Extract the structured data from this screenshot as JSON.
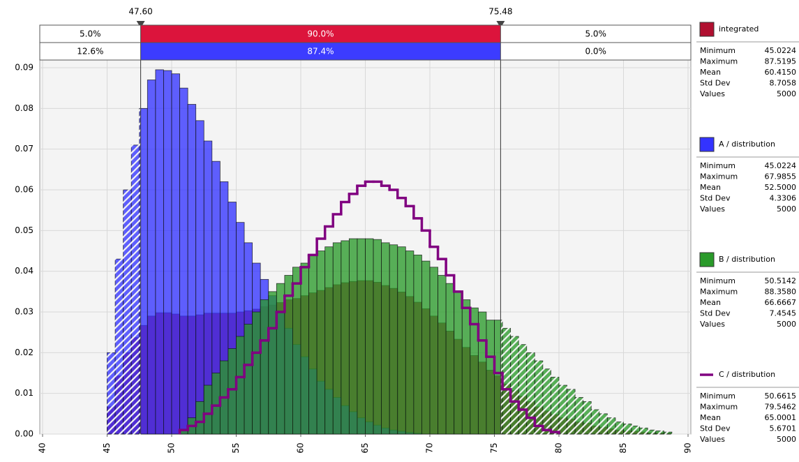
{
  "chart_data": {
    "type": "histogram",
    "bins": [
      45,
      45.625,
      46.25,
      46.875,
      47.5,
      48.125,
      48.75,
      49.375,
      50,
      50.625,
      51.25,
      51.875,
      52.5,
      53.125,
      53.75,
      54.375,
      55,
      55.625,
      56.25,
      56.875,
      57.5,
      58.125,
      58.75,
      59.375,
      60,
      60.625,
      61.25,
      61.875,
      62.5,
      63.125,
      63.75,
      64.375,
      65,
      65.625,
      66.25,
      66.875,
      67.5,
      68.125,
      68.75,
      69.375,
      70,
      70.625,
      71.25,
      71.875,
      72.5,
      73.125,
      73.75,
      74.375,
      75,
      75.625,
      76.25,
      76.875,
      77.5,
      78.125,
      78.75,
      79.375,
      80,
      80.625,
      81.25,
      81.875,
      82.5,
      83.125,
      83.75,
      84.375,
      85,
      85.625,
      86.25,
      86.875,
      87.5,
      88.125,
      88.75
    ],
    "xlim": [
      40,
      90
    ],
    "xticks": [
      40,
      45,
      50,
      55,
      60,
      65,
      70,
      75,
      80,
      85,
      90
    ],
    "ylim": [
      0,
      0.092
    ],
    "yticks": [
      {
        "value": 0,
        "label": "0.00"
      },
      {
        "value": 0.01,
        "label": "0.01"
      },
      {
        "value": 0.02,
        "label": "0.02"
      },
      {
        "value": 0.03,
        "label": "0.03"
      },
      {
        "value": 0.04,
        "label": "0.04"
      },
      {
        "value": 0.05,
        "label": "0.05"
      },
      {
        "value": 0.06,
        "label": "0.06"
      },
      {
        "value": 0.07,
        "label": "0.07"
      },
      {
        "value": 0.08,
        "label": "0.08"
      },
      {
        "value": 0.09,
        "label": "0.09"
      }
    ],
    "grid": true,
    "delimiters": [
      {
        "value": 47.6,
        "label": "47.60"
      },
      {
        "value": 75.48,
        "label": "75.48"
      }
    ],
    "probability_rows": [
      {
        "color": "#dc143c",
        "labels": [
          "5.0%",
          "90.0%",
          "5.0%"
        ]
      },
      {
        "color": "#3c3cff",
        "labels": [
          "12.6%",
          "87.4%",
          "0.0%"
        ]
      }
    ],
    "series": [
      {
        "name": "integrated",
        "style": "bars",
        "color": "#b01030",
        "values": [
          0.0067,
          0.0143,
          0.02,
          0.0237,
          0.0267,
          0.029,
          0.0298,
          0.0298,
          0.0295,
          0.029,
          0.029,
          0.0293,
          0.0297,
          0.0297,
          0.0297,
          0.0297,
          0.03,
          0.0303,
          0.0307,
          0.0313,
          0.0317,
          0.0323,
          0.033,
          0.0333,
          0.034,
          0.0347,
          0.0353,
          0.036,
          0.0367,
          0.0372,
          0.0375,
          0.0377,
          0.0377,
          0.0373,
          0.0365,
          0.0358,
          0.0349,
          0.0338,
          0.0324,
          0.0308,
          0.029,
          0.0273,
          0.0253,
          0.0233,
          0.0213,
          0.0193,
          0.0177,
          0.0157,
          0.0143,
          0.0123,
          0.0107,
          0.0093,
          0.008,
          0.0067,
          0.0057,
          0.0048,
          0.004,
          0.0037,
          0.003,
          0.0027,
          0.002,
          0.0017,
          0.0013,
          0.001,
          0.0008,
          0.0007,
          0.0005,
          0.0003,
          0.0003,
          0.0002
        ],
        "stats": [
          [
            "Minimum",
            "45.0224"
          ],
          [
            "Maximum",
            "87.5195"
          ],
          [
            "Mean",
            "60.4150"
          ],
          [
            "Std Dev",
            "8.7058"
          ],
          [
            "Values",
            "5000"
          ]
        ]
      },
      {
        "name": "A / distribution",
        "style": "bars",
        "color": "#3333ff",
        "values": [
          0.02,
          0.043,
          0.06,
          0.071,
          0.08,
          0.087,
          0.0895,
          0.0893,
          0.0885,
          0.085,
          0.081,
          0.077,
          0.072,
          0.067,
          0.062,
          0.057,
          0.052,
          0.047,
          0.042,
          0.038,
          0.034,
          0.03,
          0.026,
          0.022,
          0.019,
          0.016,
          0.013,
          0.011,
          0.009,
          0.007,
          0.0055,
          0.004,
          0.003,
          0.0022,
          0.0015,
          0.001,
          0.0007,
          0.0004,
          0.0002,
          0,
          0,
          0,
          0,
          0,
          0,
          0,
          0,
          0,
          0,
          0,
          0,
          0,
          0,
          0,
          0,
          0,
          0,
          0,
          0,
          0,
          0,
          0,
          0,
          0,
          0,
          0,
          0,
          0,
          0,
          0
        ],
        "stats": [
          [
            "Minimum",
            "45.0224"
          ],
          [
            "Maximum",
            "67.9855"
          ],
          [
            "Mean",
            "52.5000"
          ],
          [
            "Std Dev",
            "4.3306"
          ],
          [
            "Values",
            "5000"
          ]
        ]
      },
      {
        "name": "B / distribution",
        "style": "bars",
        "color": "#2a9a2a",
        "values": [
          0,
          0,
          0,
          0,
          0,
          0,
          0,
          0,
          0,
          0.001,
          0.004,
          0.008,
          0.012,
          0.015,
          0.018,
          0.021,
          0.024,
          0.027,
          0.03,
          0.033,
          0.035,
          0.037,
          0.039,
          0.041,
          0.042,
          0.044,
          0.045,
          0.046,
          0.047,
          0.0475,
          0.048,
          0.048,
          0.048,
          0.0478,
          0.047,
          0.0465,
          0.046,
          0.045,
          0.044,
          0.0425,
          0.041,
          0.039,
          0.037,
          0.035,
          0.033,
          0.031,
          0.03,
          0.028,
          0.028,
          0.026,
          0.024,
          0.022,
          0.02,
          0.018,
          0.016,
          0.014,
          0.012,
          0.011,
          0.009,
          0.008,
          0.006,
          0.005,
          0.004,
          0.003,
          0.0025,
          0.002,
          0.0015,
          0.001,
          0.0008,
          0.0005
        ],
        "stats": [
          [
            "Minimum",
            "50.5142"
          ],
          [
            "Maximum",
            "88.3580"
          ],
          [
            "Mean",
            "66.6667"
          ],
          [
            "Std Dev",
            "7.4545"
          ],
          [
            "Values",
            "5000"
          ]
        ]
      },
      {
        "name": "C / distribution",
        "style": "step",
        "color": "#800080",
        "values": [
          null,
          null,
          null,
          null,
          null,
          null,
          null,
          null,
          null,
          0.001,
          0.002,
          0.003,
          0.005,
          0.007,
          0.009,
          0.011,
          0.014,
          0.017,
          0.02,
          0.023,
          0.026,
          0.03,
          0.034,
          0.037,
          0.041,
          0.044,
          0.048,
          0.051,
          0.054,
          0.057,
          0.059,
          0.061,
          0.062,
          0.062,
          0.061,
          0.06,
          0.058,
          0.056,
          0.053,
          0.05,
          0.046,
          0.043,
          0.039,
          0.035,
          0.031,
          0.027,
          0.023,
          0.019,
          0.015,
          0.011,
          0.008,
          0.006,
          0.004,
          0.002,
          0.001,
          0.0005,
          null,
          null,
          null,
          null,
          null,
          null,
          null,
          null,
          null,
          null,
          null,
          null,
          null,
          null
        ],
        "stats": [
          [
            "Minimum",
            "50.6615"
          ],
          [
            "Maximum",
            "79.5462"
          ],
          [
            "Mean",
            "65.0001"
          ],
          [
            "Std Dev",
            "5.6701"
          ],
          [
            "Values",
            "5000"
          ]
        ]
      }
    ]
  }
}
